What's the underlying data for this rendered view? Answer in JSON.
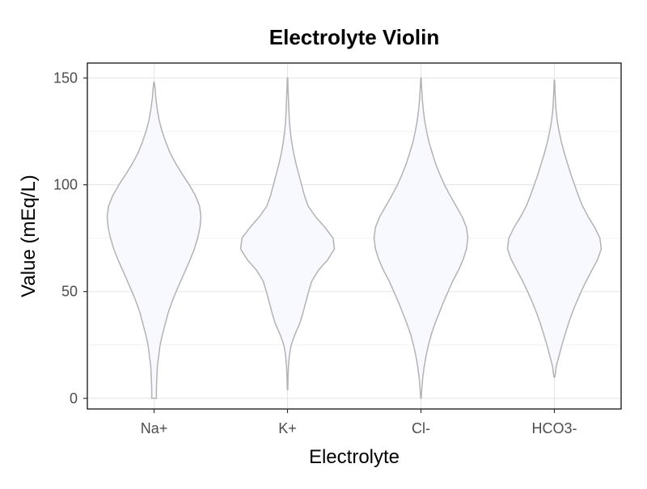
{
  "chart_data": {
    "type": "violin",
    "title": "Electrolyte Violin",
    "xlabel": "Electrolyte",
    "ylabel": "Value (mEq/L)",
    "categories": [
      "Na+",
      "K+",
      "Cl-",
      "HCO3-"
    ],
    "ylim": [
      -5,
      157
    ],
    "yticks": [
      0,
      50,
      100,
      150
    ],
    "ytick_labels": [
      "0",
      "50",
      "100",
      "150"
    ],
    "grid": true,
    "fill_color": "#f8f8ff",
    "outline_color": "#b3b3b3",
    "series": [
      {
        "category": "Na+",
        "profile": [
          [
            0,
            0.05
          ],
          [
            5,
            0.05
          ],
          [
            10,
            0.06
          ],
          [
            15,
            0.07
          ],
          [
            20,
            0.1
          ],
          [
            25,
            0.13
          ],
          [
            30,
            0.18
          ],
          [
            35,
            0.24
          ],
          [
            40,
            0.3
          ],
          [
            45,
            0.38
          ],
          [
            50,
            0.47
          ],
          [
            55,
            0.57
          ],
          [
            60,
            0.67
          ],
          [
            65,
            0.77
          ],
          [
            70,
            0.86
          ],
          [
            75,
            0.93
          ],
          [
            80,
            0.98
          ],
          [
            85,
            1.0
          ],
          [
            90,
            0.97
          ],
          [
            95,
            0.88
          ],
          [
            100,
            0.75
          ],
          [
            105,
            0.6
          ],
          [
            110,
            0.46
          ],
          [
            115,
            0.34
          ],
          [
            120,
            0.25
          ],
          [
            125,
            0.17
          ],
          [
            130,
            0.11
          ],
          [
            135,
            0.07
          ],
          [
            140,
            0.04
          ],
          [
            145,
            0.02
          ],
          [
            148,
            0.005
          ]
        ]
      },
      {
        "category": "K+",
        "profile": [
          [
            4,
            0.005
          ],
          [
            10,
            0.01
          ],
          [
            15,
            0.02
          ],
          [
            20,
            0.04
          ],
          [
            25,
            0.08
          ],
          [
            30,
            0.16
          ],
          [
            35,
            0.26
          ],
          [
            40,
            0.33
          ],
          [
            45,
            0.39
          ],
          [
            50,
            0.45
          ],
          [
            55,
            0.52
          ],
          [
            60,
            0.66
          ],
          [
            65,
            0.86
          ],
          [
            70,
            1.0
          ],
          [
            75,
            0.97
          ],
          [
            80,
            0.8
          ],
          [
            85,
            0.6
          ],
          [
            90,
            0.44
          ],
          [
            95,
            0.36
          ],
          [
            100,
            0.3
          ],
          [
            105,
            0.24
          ],
          [
            110,
            0.18
          ],
          [
            115,
            0.13
          ],
          [
            120,
            0.09
          ],
          [
            125,
            0.06
          ],
          [
            130,
            0.04
          ],
          [
            135,
            0.03
          ],
          [
            140,
            0.02
          ],
          [
            145,
            0.01
          ],
          [
            150,
            0.005
          ]
        ]
      },
      {
        "category": "Cl-",
        "profile": [
          [
            0,
            0.005
          ],
          [
            5,
            0.02
          ],
          [
            10,
            0.04
          ],
          [
            15,
            0.07
          ],
          [
            20,
            0.11
          ],
          [
            25,
            0.16
          ],
          [
            30,
            0.22
          ],
          [
            35,
            0.3
          ],
          [
            40,
            0.39
          ],
          [
            45,
            0.48
          ],
          [
            50,
            0.58
          ],
          [
            55,
            0.68
          ],
          [
            60,
            0.8
          ],
          [
            65,
            0.9
          ],
          [
            70,
            0.97
          ],
          [
            75,
            1.0
          ],
          [
            80,
            0.97
          ],
          [
            85,
            0.88
          ],
          [
            90,
            0.75
          ],
          [
            95,
            0.62
          ],
          [
            100,
            0.5
          ],
          [
            105,
            0.4
          ],
          [
            110,
            0.31
          ],
          [
            115,
            0.24
          ],
          [
            120,
            0.17
          ],
          [
            125,
            0.12
          ],
          [
            130,
            0.08
          ],
          [
            135,
            0.05
          ],
          [
            140,
            0.03
          ],
          [
            145,
            0.015
          ],
          [
            150,
            0.005
          ]
        ]
      },
      {
        "category": "HCO3-",
        "profile": [
          [
            10,
            0.01
          ],
          [
            15,
            0.04
          ],
          [
            20,
            0.1
          ],
          [
            25,
            0.16
          ],
          [
            30,
            0.23
          ],
          [
            35,
            0.3
          ],
          [
            40,
            0.38
          ],
          [
            45,
            0.47
          ],
          [
            50,
            0.57
          ],
          [
            55,
            0.68
          ],
          [
            60,
            0.8
          ],
          [
            65,
            0.92
          ],
          [
            70,
            1.0
          ],
          [
            75,
            0.97
          ],
          [
            80,
            0.86
          ],
          [
            85,
            0.72
          ],
          [
            90,
            0.6
          ],
          [
            95,
            0.51
          ],
          [
            100,
            0.43
          ],
          [
            105,
            0.35
          ],
          [
            110,
            0.28
          ],
          [
            115,
            0.21
          ],
          [
            120,
            0.15
          ],
          [
            125,
            0.1
          ],
          [
            130,
            0.06
          ],
          [
            135,
            0.035
          ],
          [
            140,
            0.02
          ],
          [
            145,
            0.01
          ],
          [
            149,
            0.005
          ]
        ]
      }
    ]
  }
}
